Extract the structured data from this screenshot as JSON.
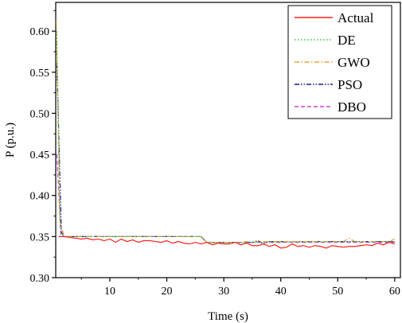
{
  "chart_data": {
    "type": "line",
    "xlabel": "Time (s)",
    "ylabel": "P  (p.u.)",
    "xlim": [
      0.5,
      61
    ],
    "ylim": [
      0.3,
      0.635
    ],
    "x_ticks": [
      10,
      20,
      30,
      40,
      50,
      60
    ],
    "x_tick_labels": [
      "10",
      "20",
      "30",
      "40",
      "50",
      "60"
    ],
    "y_ticks": [
      0.3,
      0.35,
      0.4,
      0.45,
      0.5,
      0.55,
      0.6
    ],
    "y_tick_labels": [
      "0.30",
      "0.35",
      "0.40",
      "0.45",
      "0.50",
      "0.55",
      "0.60"
    ],
    "grid": false,
    "legend_position": "top-right",
    "series": [
      {
        "name": "Actual",
        "color": "#ff1f1f",
        "dash": "solid",
        "x": [
          1,
          2,
          3,
          4,
          5,
          6,
          7,
          8,
          9,
          10,
          11,
          12,
          13,
          14,
          15,
          16,
          17,
          18,
          19,
          20,
          21,
          22,
          23,
          24,
          25,
          26,
          27,
          28,
          29,
          30,
          31,
          32,
          33,
          34,
          35,
          36,
          37,
          38,
          39,
          40,
          41,
          42,
          43,
          44,
          45,
          46,
          47,
          48,
          49,
          50,
          51,
          52,
          53,
          54,
          55,
          56,
          57,
          58,
          59,
          60
        ],
        "y": [
          0.35,
          0.35,
          0.349,
          0.348,
          0.347,
          0.348,
          0.346,
          0.347,
          0.345,
          0.347,
          0.343,
          0.347,
          0.344,
          0.346,
          0.343,
          0.345,
          0.345,
          0.344,
          0.343,
          0.345,
          0.342,
          0.344,
          0.342,
          0.341,
          0.343,
          0.341,
          0.343,
          0.34,
          0.342,
          0.341,
          0.341,
          0.343,
          0.34,
          0.342,
          0.339,
          0.339,
          0.341,
          0.338,
          0.34,
          0.336,
          0.337,
          0.341,
          0.338,
          0.339,
          0.337,
          0.339,
          0.338,
          0.336,
          0.339,
          0.338,
          0.337,
          0.338,
          0.338,
          0.339,
          0.34,
          0.339,
          0.342,
          0.34,
          0.343,
          0.341
        ]
      },
      {
        "name": "DE",
        "color": "#3cc83c",
        "dash": "dot",
        "x": [
          0.7,
          1.3,
          2,
          26,
          27,
          33,
          34,
          35,
          36,
          38,
          60
        ],
        "y": [
          0.6,
          0.36,
          0.35,
          0.35,
          0.343,
          0.343,
          0.343,
          0.343,
          0.343,
          0.343,
          0.344
        ]
      },
      {
        "name": "GWO",
        "color": "#e8a33a",
        "dash": "dashdot",
        "x": [
          0.6,
          1.2,
          2,
          26,
          27,
          33,
          34,
          35,
          36,
          38,
          51,
          52,
          53,
          59,
          60
        ],
        "y": [
          0.612,
          0.37,
          0.35,
          0.35,
          0.343,
          0.343,
          0.344,
          0.342,
          0.344,
          0.344,
          0.344,
          0.348,
          0.344,
          0.344,
          0.347
        ]
      },
      {
        "name": "PSO",
        "color": "#1a1a8c",
        "dash": "dashdotdot",
        "x": [
          0.7,
          1.5,
          2,
          26,
          27,
          35,
          36,
          37,
          38,
          60
        ],
        "y": [
          0.56,
          0.355,
          0.35,
          0.35,
          0.343,
          0.343,
          0.345,
          0.341,
          0.344,
          0.344
        ]
      },
      {
        "name": "DBO",
        "color": "#cc44cc",
        "dash": "dash",
        "x": [
          0.7,
          1.4,
          2,
          26,
          27,
          60
        ],
        "y": [
          0.45,
          0.352,
          0.35,
          0.35,
          0.343,
          0.343
        ]
      }
    ]
  }
}
